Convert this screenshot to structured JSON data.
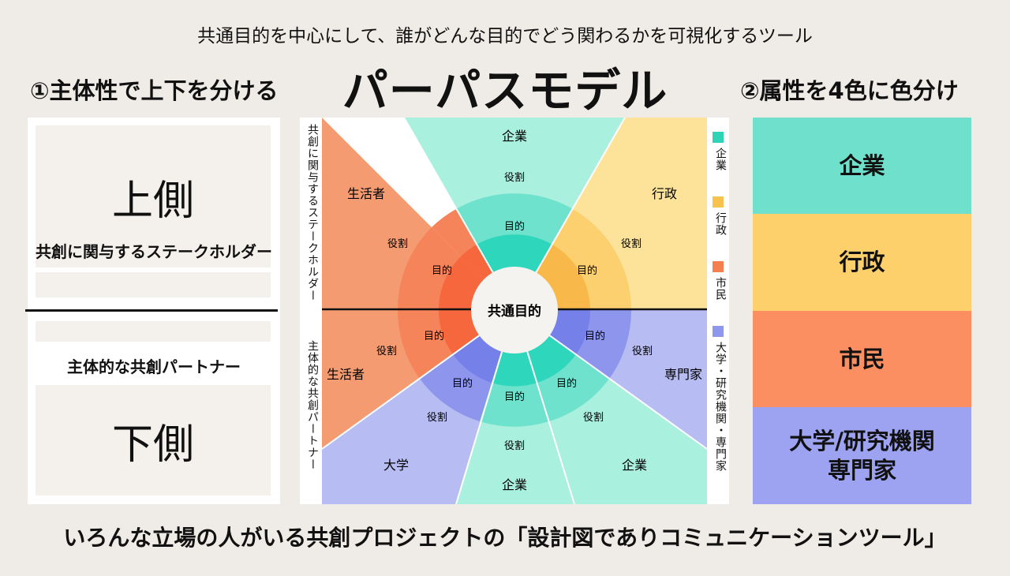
{
  "subtitle": "共通目的を中心にして、誰がどんな目的でどう関わるかを可視化するツール",
  "title": "パーパスモデル",
  "left_heading": "①主体性で上下を分ける",
  "right_heading": "②属性を4色に色分け",
  "upper": {
    "label": "上側",
    "sublabel": "共創に関与するステークホルダー"
  },
  "lower": {
    "label": "下側",
    "sublabel": "主体的な共創パートナー"
  },
  "center_label": "共通目的",
  "ring_labels": {
    "purpose": "目的",
    "role": "役割"
  },
  "segments": {
    "top_company": "企業",
    "life_upper": "生活者",
    "gov": "行政",
    "life_lower": "生活者",
    "expert": "専門家",
    "univ": "大学",
    "bottom_company": "企業",
    "bottom_right_company": "企業"
  },
  "side_vertical_upper": "共創に関与するステークホルダー",
  "side_vertical_lower": "主体的な共創パートナー",
  "legend": [
    {
      "label": "企業",
      "color": "#2fd3b6"
    },
    {
      "label": "行政",
      "color": "#f7c34e"
    },
    {
      "label": "市民",
      "color": "#f3814f"
    },
    {
      "label": "大学・研究機関・専門家",
      "color": "#8f97ec"
    }
  ],
  "attributes": [
    {
      "label": "企業",
      "color": "#6ee0cb"
    },
    {
      "label": "行政",
      "color": "#fdd06b"
    },
    {
      "label": "市民",
      "color": "#fb8f62"
    },
    {
      "label": "大学/研究機関\n専門家",
      "color": "#9da3f1"
    }
  ],
  "footer": "いろんな立場の人がいる共創プロジェクトの「設計図でありコミュニケーションツール」"
}
